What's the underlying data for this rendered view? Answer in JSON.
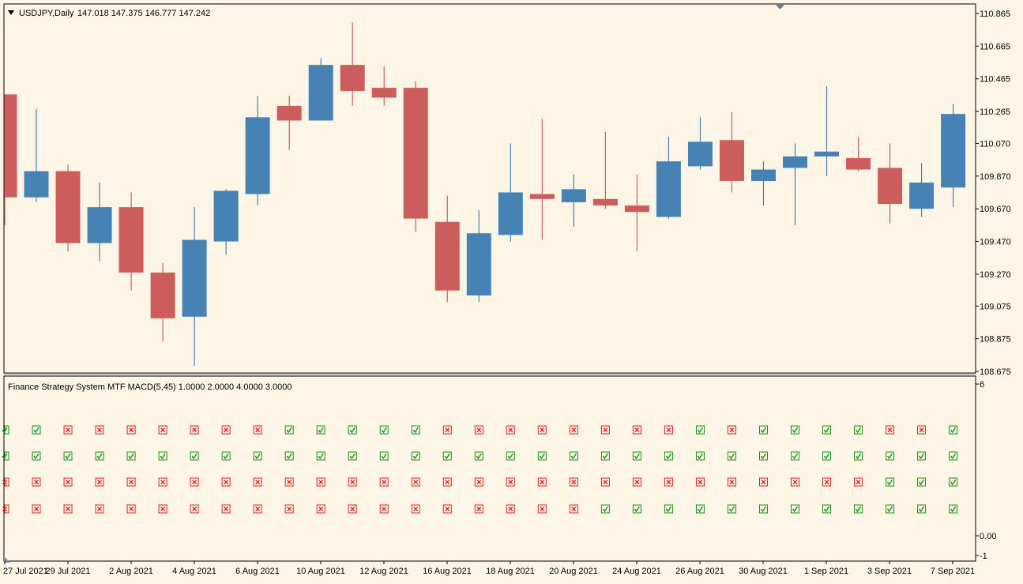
{
  "header": {
    "symbol": "USDJPY,Daily",
    "ohlc": "147.018 147.375 146.777 147.242"
  },
  "indicator": {
    "title": "Finance Strategy System MTF MACD(5,45) 1.0000 2.0000 4.0000 3.0000",
    "yticks": [
      "6",
      "0.00",
      "-1"
    ]
  },
  "colors": {
    "background": "#fdf6e6",
    "bull": "#4682b4",
    "bear": "#cd5c5c",
    "check": "#1a8f1a",
    "cross": "#dd2222"
  },
  "chart_data": [
    {
      "type": "candlestick",
      "title": "USDJPY,Daily",
      "ylim": [
        108.65,
        110.88
      ],
      "yticks": [
        110.865,
        110.665,
        110.465,
        110.265,
        110.07,
        109.87,
        109.67,
        109.47,
        109.27,
        109.075,
        108.875,
        108.675
      ],
      "xticks": [
        "27 Jul 2021",
        "29 Jul 2021",
        "2 Aug 2021",
        "4 Aug 2021",
        "6 Aug 2021",
        "10 Aug 2021",
        "12 Aug 2021",
        "16 Aug 2021",
        "18 Aug 2021",
        "20 Aug 2021",
        "24 Aug 2021",
        "26 Aug 2021",
        "30 Aug 2021",
        "1 Sep 2021",
        "3 Sep 2021",
        "7 Sep 2021"
      ],
      "candles": [
        {
          "o": 110.37,
          "h": 110.37,
          "l": 109.57,
          "c": 109.74
        },
        {
          "o": 109.74,
          "h": 110.28,
          "l": 109.71,
          "c": 109.9
        },
        {
          "o": 109.9,
          "h": 109.94,
          "l": 109.41,
          "c": 109.46
        },
        {
          "o": 109.46,
          "h": 109.83,
          "l": 109.35,
          "c": 109.68
        },
        {
          "o": 109.68,
          "h": 109.77,
          "l": 109.17,
          "c": 109.28
        },
        {
          "o": 109.28,
          "h": 109.34,
          "l": 108.86,
          "c": 109.0
        },
        {
          "o": 109.01,
          "h": 109.68,
          "l": 108.71,
          "c": 109.48
        },
        {
          "o": 109.47,
          "h": 109.79,
          "l": 109.39,
          "c": 109.78
        },
        {
          "o": 109.76,
          "h": 110.36,
          "l": 109.69,
          "c": 110.23
        },
        {
          "o": 110.3,
          "h": 110.36,
          "l": 110.03,
          "c": 110.21
        },
        {
          "o": 110.21,
          "h": 110.59,
          "l": 110.21,
          "c": 110.55
        },
        {
          "o": 110.55,
          "h": 110.81,
          "l": 110.3,
          "c": 110.39
        },
        {
          "o": 110.41,
          "h": 110.54,
          "l": 110.3,
          "c": 110.35
        },
        {
          "o": 110.41,
          "h": 110.45,
          "l": 109.53,
          "c": 109.61
        },
        {
          "o": 109.59,
          "h": 109.75,
          "l": 109.1,
          "c": 109.17
        },
        {
          "o": 109.14,
          "h": 109.66,
          "l": 109.1,
          "c": 109.52
        },
        {
          "o": 109.51,
          "h": 110.07,
          "l": 109.47,
          "c": 109.77
        },
        {
          "o": 109.76,
          "h": 110.22,
          "l": 109.48,
          "c": 109.73
        },
        {
          "o": 109.71,
          "h": 109.88,
          "l": 109.56,
          "c": 109.79
        },
        {
          "o": 109.73,
          "h": 110.14,
          "l": 109.67,
          "c": 109.69
        },
        {
          "o": 109.69,
          "h": 109.88,
          "l": 109.41,
          "c": 109.65
        },
        {
          "o": 109.62,
          "h": 110.11,
          "l": 109.61,
          "c": 109.96
        },
        {
          "o": 109.93,
          "h": 110.23,
          "l": 109.91,
          "c": 110.08
        },
        {
          "o": 110.09,
          "h": 110.26,
          "l": 109.77,
          "c": 109.84
        },
        {
          "o": 109.84,
          "h": 109.96,
          "l": 109.69,
          "c": 109.91
        },
        {
          "o": 109.92,
          "h": 110.07,
          "l": 109.57,
          "c": 109.99
        },
        {
          "o": 109.99,
          "h": 110.42,
          "l": 109.87,
          "c": 110.02
        },
        {
          "o": 109.98,
          "h": 110.11,
          "l": 109.9,
          "c": 109.91
        },
        {
          "o": 109.92,
          "h": 110.07,
          "l": 109.58,
          "c": 109.7
        },
        {
          "o": 109.67,
          "h": 109.95,
          "l": 109.62,
          "c": 109.83
        },
        {
          "o": 109.8,
          "h": 110.31,
          "l": 109.68,
          "c": 110.25
        }
      ]
    },
    {
      "type": "signal-grid",
      "title": "Finance Strategy System MTF MACD(5,45) 1.0000 2.0000 4.0000 3.0000",
      "legend": "1 = check (bullish), 0 = cross (bearish)",
      "rows": [
        [
          1,
          1,
          0,
          0,
          0,
          0,
          0,
          0,
          0,
          1,
          1,
          1,
          1,
          1,
          0,
          0,
          0,
          0,
          0,
          0,
          0,
          0,
          1,
          0,
          1,
          1,
          1,
          1,
          0,
          0,
          1
        ],
        [
          1,
          1,
          1,
          1,
          1,
          1,
          1,
          1,
          1,
          1,
          1,
          1,
          1,
          1,
          1,
          1,
          1,
          1,
          1,
          1,
          1,
          1,
          1,
          1,
          1,
          1,
          1,
          1,
          1,
          1,
          1
        ],
        [
          0,
          0,
          0,
          0,
          0,
          0,
          0,
          0,
          0,
          0,
          0,
          0,
          0,
          0,
          0,
          0,
          0,
          0,
          0,
          0,
          0,
          0,
          0,
          0,
          0,
          0,
          0,
          0,
          1,
          1,
          1
        ],
        [
          0,
          0,
          0,
          0,
          0,
          0,
          0,
          0,
          0,
          0,
          0,
          0,
          0,
          0,
          0,
          0,
          0,
          0,
          0,
          1,
          1,
          1,
          1,
          1,
          1,
          1,
          1,
          1,
          1,
          1,
          1
        ]
      ]
    }
  ]
}
